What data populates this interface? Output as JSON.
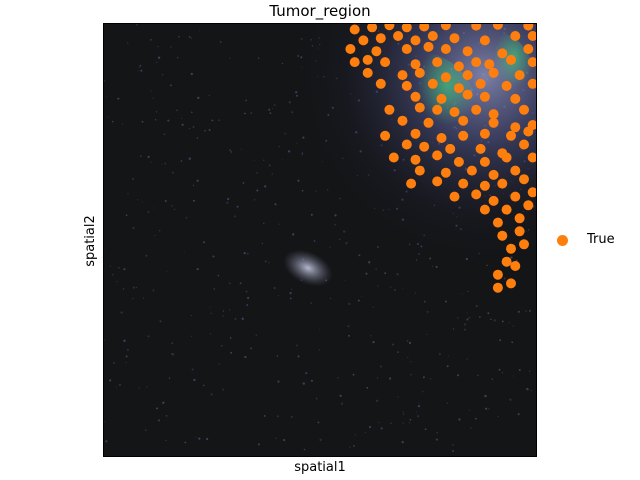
{
  "chart_data": {
    "type": "scatter",
    "title": "Tumor_region",
    "xlabel": "spatial1",
    "ylabel": "spatial2",
    "grid": false,
    "legend": {
      "placement": "right",
      "entries": [
        {
          "label": "True",
          "color": "#ff7f0e"
        }
      ]
    },
    "background": "tissue image",
    "series": [
      {
        "name": "True",
        "color": "#ff7f0e",
        "points": [
          [
            0.58,
            0.015
          ],
          [
            0.62,
            0.01
          ],
          [
            0.66,
            0.005
          ],
          [
            0.7,
            0.01
          ],
          [
            0.74,
            0.008
          ],
          [
            0.79,
            0.005
          ],
          [
            0.86,
            0.006
          ],
          [
            0.91,
            0.004
          ],
          [
            0.98,
            0.006
          ],
          [
            0.6,
            0.04
          ],
          [
            0.64,
            0.035
          ],
          [
            0.68,
            0.03
          ],
          [
            0.72,
            0.04
          ],
          [
            0.76,
            0.03
          ],
          [
            0.81,
            0.035
          ],
          [
            0.88,
            0.04
          ],
          [
            0.95,
            0.03
          ],
          [
            0.99,
            0.03
          ],
          [
            0.57,
            0.06
          ],
          [
            0.63,
            0.065
          ],
          [
            0.7,
            0.06
          ],
          [
            0.75,
            0.055
          ],
          [
            0.79,
            0.06
          ],
          [
            0.84,
            0.065
          ],
          [
            0.92,
            0.07
          ],
          [
            0.98,
            0.06
          ],
          [
            0.58,
            0.09
          ],
          [
            0.61,
            0.085
          ],
          [
            0.65,
            0.09
          ],
          [
            0.72,
            0.095
          ],
          [
            0.77,
            0.09
          ],
          [
            0.82,
            0.1
          ],
          [
            0.86,
            0.09
          ],
          [
            0.89,
            0.095
          ],
          [
            0.94,
            0.085
          ],
          [
            0.99,
            0.09
          ],
          [
            0.61,
            0.115
          ],
          [
            0.69,
            0.12
          ],
          [
            0.73,
            0.115
          ],
          [
            0.79,
            0.125
          ],
          [
            0.84,
            0.12
          ],
          [
            0.9,
            0.115
          ],
          [
            0.96,
            0.12
          ],
          [
            0.64,
            0.14
          ],
          [
            0.7,
            0.145
          ],
          [
            0.76,
            0.14
          ],
          [
            0.82,
            0.15
          ],
          [
            0.87,
            0.14
          ],
          [
            0.93,
            0.145
          ],
          [
            0.99,
            0.14
          ],
          [
            0.72,
            0.17
          ],
          [
            0.78,
            0.175
          ],
          [
            0.84,
            0.165
          ],
          [
            0.88,
            0.17
          ],
          [
            0.95,
            0.175
          ],
          [
            0.66,
            0.2
          ],
          [
            0.73,
            0.195
          ],
          [
            0.77,
            0.2
          ],
          [
            0.81,
            0.205
          ],
          [
            0.86,
            0.2
          ],
          [
            0.9,
            0.21
          ],
          [
            0.97,
            0.2
          ],
          [
            0.69,
            0.225
          ],
          [
            0.75,
            0.23
          ],
          [
            0.83,
            0.225
          ],
          [
            0.9,
            0.23
          ],
          [
            0.95,
            0.24
          ],
          [
            0.99,
            0.235
          ],
          [
            0.65,
            0.26
          ],
          [
            0.72,
            0.255
          ],
          [
            0.78,
            0.265
          ],
          [
            0.83,
            0.26
          ],
          [
            0.88,
            0.255
          ],
          [
            0.94,
            0.26
          ],
          [
            0.98,
            0.25
          ],
          [
            0.7,
            0.28
          ],
          [
            0.74,
            0.285
          ],
          [
            0.8,
            0.29
          ],
          [
            0.87,
            0.29
          ],
          [
            0.92,
            0.3
          ],
          [
            0.97,
            0.28
          ],
          [
            0.67,
            0.31
          ],
          [
            0.72,
            0.315
          ],
          [
            0.77,
            0.305
          ],
          [
            0.82,
            0.32
          ],
          [
            0.88,
            0.32
          ],
          [
            0.93,
            0.31
          ],
          [
            0.99,
            0.31
          ],
          [
            0.73,
            0.34
          ],
          [
            0.79,
            0.345
          ],
          [
            0.85,
            0.34
          ],
          [
            0.9,
            0.35
          ],
          [
            0.95,
            0.34
          ],
          [
            0.71,
            0.37
          ],
          [
            0.77,
            0.365
          ],
          [
            0.83,
            0.37
          ],
          [
            0.88,
            0.375
          ],
          [
            0.92,
            0.37
          ],
          [
            0.97,
            0.36
          ],
          [
            0.81,
            0.4
          ],
          [
            0.86,
            0.395
          ],
          [
            0.9,
            0.41
          ],
          [
            0.95,
            0.4
          ],
          [
            0.99,
            0.39
          ],
          [
            0.88,
            0.43
          ],
          [
            0.93,
            0.43
          ],
          [
            0.98,
            0.42
          ],
          [
            0.91,
            0.46
          ],
          [
            0.96,
            0.45
          ],
          [
            0.92,
            0.49
          ],
          [
            0.96,
            0.48
          ],
          [
            0.94,
            0.52
          ],
          [
            0.97,
            0.51
          ],
          [
            0.93,
            0.55
          ],
          [
            0.95,
            0.56
          ],
          [
            0.91,
            0.58
          ],
          [
            0.94,
            0.6
          ],
          [
            0.91,
            0.61
          ]
        ]
      }
    ]
  }
}
